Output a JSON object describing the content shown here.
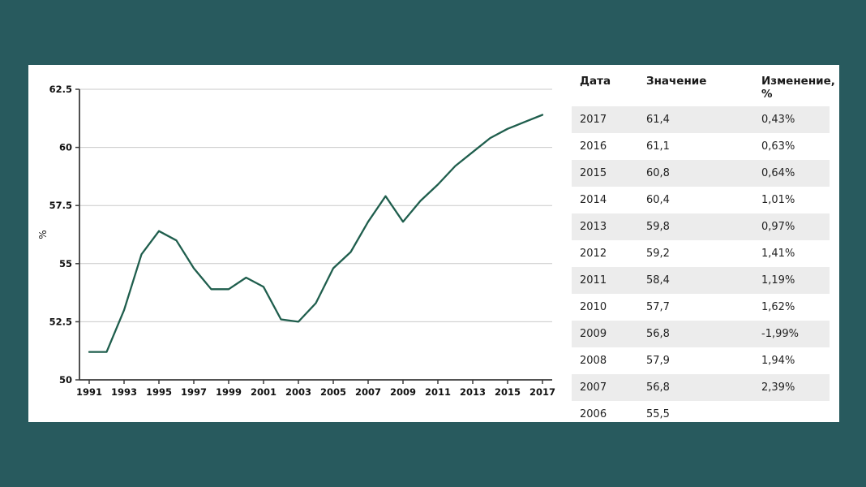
{
  "colors": {
    "background": "#285a5e",
    "panel": "#ffffff",
    "row_alt": "#ececec",
    "grid": "#c9c9c9",
    "axis": "#3c3c3c",
    "text": "#111111"
  },
  "chart_data": {
    "type": "line",
    "title": "",
    "xlabel": "",
    "ylabel": "%",
    "x": [
      1991,
      1992,
      1993,
      1994,
      1995,
      1996,
      1997,
      1998,
      1999,
      2000,
      2001,
      2002,
      2003,
      2004,
      2005,
      2006,
      2007,
      2008,
      2009,
      2010,
      2011,
      2012,
      2013,
      2014,
      2015,
      2016,
      2017
    ],
    "values": [
      51.2,
      51.2,
      53.0,
      55.4,
      56.4,
      56.0,
      54.8,
      53.9,
      53.9,
      54.4,
      54.0,
      52.6,
      52.5,
      53.3,
      54.8,
      55.5,
      56.8,
      57.9,
      56.8,
      57.7,
      58.4,
      59.2,
      59.8,
      60.4,
      60.8,
      61.1,
      61.4
    ],
    "xlim": [
      1991,
      2017
    ],
    "ylim": [
      50,
      62.5
    ],
    "yticks": [
      50,
      52.5,
      55,
      57.5,
      60,
      62.5
    ],
    "xticks": [
      1991,
      1993,
      1995,
      1997,
      1999,
      2001,
      2003,
      2005,
      2007,
      2009,
      2011,
      2013,
      2015,
      2017
    ],
    "grid": true,
    "legend_position": "none",
    "line_color": "#1f5e4d"
  },
  "table": {
    "headers": [
      "Дата",
      "Значение",
      "Изменение, %"
    ],
    "rows": [
      [
        "2017",
        "61,4",
        "0,43%"
      ],
      [
        "2016",
        "61,1",
        "0,63%"
      ],
      [
        "2015",
        "60,8",
        "0,64%"
      ],
      [
        "2014",
        "60,4",
        "1,01%"
      ],
      [
        "2013",
        "59,8",
        "0,97%"
      ],
      [
        "2012",
        "59,2",
        "1,41%"
      ],
      [
        "2011",
        "58,4",
        "1,19%"
      ],
      [
        "2010",
        "57,7",
        "1,62%"
      ],
      [
        "2009",
        "56,8",
        "-1,99%"
      ],
      [
        "2008",
        "57,9",
        "1,94%"
      ],
      [
        "2007",
        "56,8",
        "2,39%"
      ],
      [
        "2006",
        "55,5",
        ""
      ]
    ]
  }
}
